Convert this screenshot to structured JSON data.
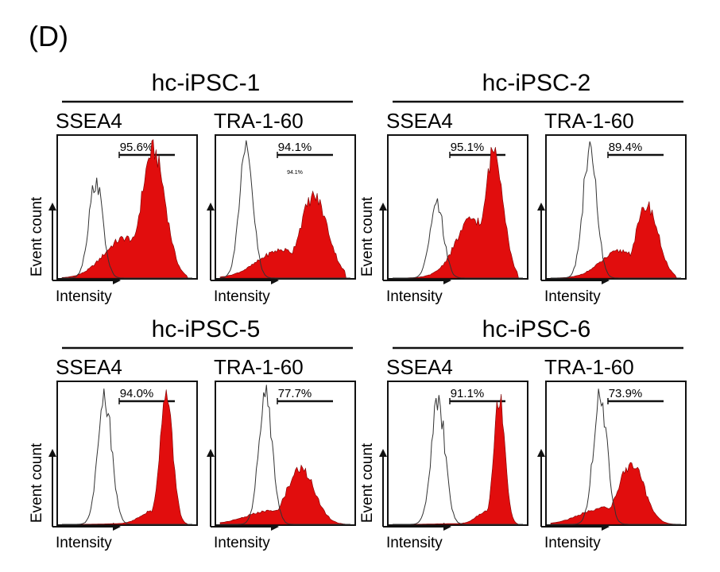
{
  "panel_label": "(D)",
  "axis_labels": {
    "x": "Intensity",
    "y": "Event count"
  },
  "colors": {
    "filled": "#e10d0d",
    "outline": "#1a1a1a",
    "control": "#333333"
  },
  "chart_data": [
    {
      "type": "histogram",
      "line": "hc-iPSC-1",
      "markers": [
        {
          "marker": "SSEA4",
          "positive_pct": "95.6%",
          "inner_note": "",
          "control_peak": 0.26,
          "control_height": 0.74,
          "main_peak": 0.7,
          "main_height": 0.97,
          "main_width": 0.13,
          "tail": 0.3
        },
        {
          "marker": "TRA-1-60",
          "positive_pct": "94.1%",
          "inner_note": "94.1%",
          "control_peak": 0.2,
          "control_height": 0.95,
          "main_peak": 0.72,
          "main_height": 0.62,
          "main_width": 0.15,
          "tail": 0.32
        }
      ]
    },
    {
      "type": "histogram",
      "line": "hc-iPSC-2",
      "markers": [
        {
          "marker": "SSEA4",
          "positive_pct": "95.1%",
          "inner_note": "",
          "control_peak": 0.34,
          "control_height": 0.55,
          "main_peak": 0.78,
          "main_height": 0.98,
          "main_width": 0.1,
          "tail": 0.45
        },
        {
          "marker": "TRA-1-60",
          "positive_pct": "89.4%",
          "inner_note": "",
          "control_peak": 0.3,
          "control_height": 0.97,
          "main_peak": 0.74,
          "main_height": 0.55,
          "main_width": 0.12,
          "tail": 0.35
        }
      ]
    },
    {
      "type": "histogram",
      "line": "hc-iPSC-5",
      "markers": [
        {
          "marker": "SSEA4",
          "positive_pct": "94.0%",
          "inner_note": "",
          "control_peak": 0.33,
          "control_height": 0.95,
          "main_peak": 0.8,
          "main_height": 0.98,
          "main_width": 0.07,
          "tail": 0.1
        },
        {
          "marker": "TRA-1-60",
          "positive_pct": "77.7%",
          "inner_note": "",
          "control_peak": 0.35,
          "control_height": 0.97,
          "main_peak": 0.62,
          "main_height": 0.42,
          "main_width": 0.15,
          "tail": 0.22
        }
      ]
    },
    {
      "type": "histogram",
      "line": "hc-iPSC-6",
      "markers": [
        {
          "marker": "SSEA4",
          "positive_pct": "91.1%",
          "inner_note": "",
          "control_peak": 0.35,
          "control_height": 0.93,
          "main_peak": 0.82,
          "main_height": 0.98,
          "main_width": 0.06,
          "tail": 0.1
        },
        {
          "marker": "TRA-1-60",
          "positive_pct": "73.9%",
          "inner_note": "",
          "control_peak": 0.38,
          "control_height": 0.97,
          "main_peak": 0.62,
          "main_height": 0.45,
          "main_width": 0.14,
          "tail": 0.25
        }
      ]
    }
  ]
}
